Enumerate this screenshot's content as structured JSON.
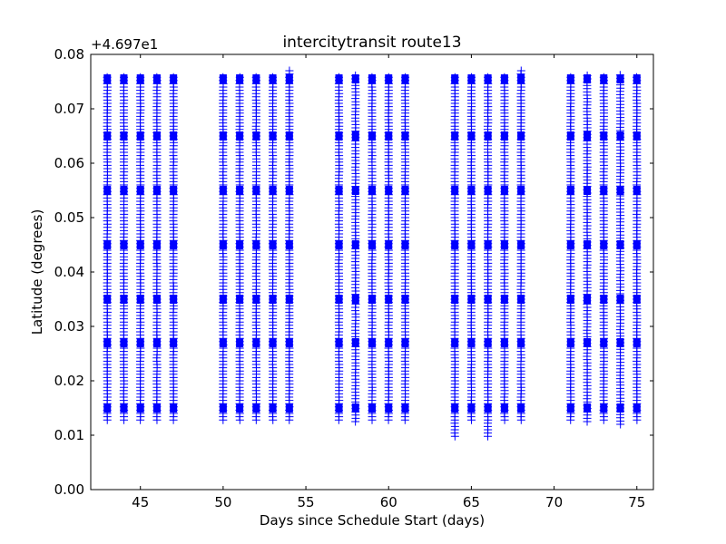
{
  "chart_data": {
    "type": "scatter",
    "title": "intercitytransit route13",
    "xlabel": "Days since Schedule Start (days)",
    "ylabel": "Latitude (degrees)",
    "y_offset_label": "+4.697e1",
    "xlim": [
      42,
      76
    ],
    "ylim": [
      0.0,
      0.08
    ],
    "xticks": [
      45,
      50,
      55,
      60,
      65,
      70,
      75
    ],
    "yticks": [
      0.0,
      0.01,
      0.02,
      0.03,
      0.04,
      0.05,
      0.06,
      0.07,
      0.08
    ],
    "ytick_labels": [
      "0.00",
      "0.01",
      "0.02",
      "0.03",
      "0.04",
      "0.05",
      "0.06",
      "0.07",
      "0.08"
    ],
    "marker": "+",
    "marker_color": "#0000ff",
    "grid": false,
    "series": [
      {
        "points_by_day": [
          {
            "day": 43,
            "ymin": 0.0128,
            "ymax": 0.0762
          },
          {
            "day": 44,
            "ymin": 0.0128,
            "ymax": 0.0762
          },
          {
            "day": 45,
            "ymin": 0.0128,
            "ymax": 0.0762
          },
          {
            "day": 46,
            "ymin": 0.0128,
            "ymax": 0.0762
          },
          {
            "day": 47,
            "ymin": 0.0128,
            "ymax": 0.0762
          },
          {
            "day": 50,
            "ymin": 0.0128,
            "ymax": 0.0762
          },
          {
            "day": 51,
            "ymin": 0.0128,
            "ymax": 0.0762
          },
          {
            "day": 52,
            "ymin": 0.0128,
            "ymax": 0.0762
          },
          {
            "day": 53,
            "ymin": 0.0128,
            "ymax": 0.0762
          },
          {
            "day": 54,
            "ymin": 0.0128,
            "ymax": 0.077
          },
          {
            "day": 57,
            "ymin": 0.0128,
            "ymax": 0.0762
          },
          {
            "day": 58,
            "ymin": 0.0125,
            "ymax": 0.0762
          },
          {
            "day": 59,
            "ymin": 0.0128,
            "ymax": 0.0762
          },
          {
            "day": 60,
            "ymin": 0.0128,
            "ymax": 0.0762
          },
          {
            "day": 61,
            "ymin": 0.0128,
            "ymax": 0.0762
          },
          {
            "day": 64,
            "ymin": 0.0098,
            "ymax": 0.0762
          },
          {
            "day": 65,
            "ymin": 0.0128,
            "ymax": 0.0762
          },
          {
            "day": 66,
            "ymin": 0.0098,
            "ymax": 0.0762
          },
          {
            "day": 67,
            "ymin": 0.0128,
            "ymax": 0.0762
          },
          {
            "day": 68,
            "ymin": 0.0128,
            "ymax": 0.077
          },
          {
            "day": 71,
            "ymin": 0.0128,
            "ymax": 0.0762
          },
          {
            "day": 72,
            "ymin": 0.0125,
            "ymax": 0.0762
          },
          {
            "day": 73,
            "ymin": 0.0128,
            "ymax": 0.0762
          },
          {
            "day": 74,
            "ymin": 0.012,
            "ymax": 0.0762
          },
          {
            "day": 75,
            "ymin": 0.0128,
            "ymax": 0.0762
          }
        ]
      }
    ]
  }
}
